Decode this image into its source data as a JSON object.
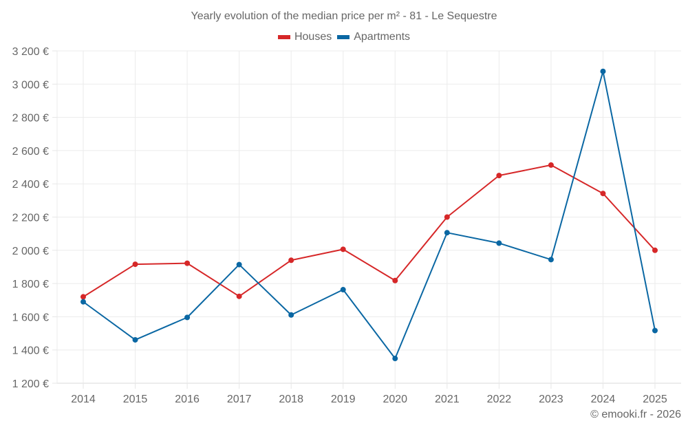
{
  "chart_data": {
    "type": "line",
    "title": "Yearly evolution of the median price per m² - 81 - Le Sequestre",
    "xlabel": "",
    "ylabel": "",
    "x": [
      "2014",
      "2015",
      "2016",
      "2017",
      "2018",
      "2019",
      "2020",
      "2021",
      "2022",
      "2023",
      "2024",
      "2025"
    ],
    "series": [
      {
        "name": "Houses",
        "color": "#d62728",
        "values": [
          1720,
          1916,
          1922,
          1723,
          1940,
          2006,
          1818,
          2200,
          2450,
          2513,
          2342,
          2000
        ]
      },
      {
        "name": "Apartments",
        "color": "#0a67a3",
        "values": [
          1690,
          1461,
          1596,
          1914,
          1611,
          1763,
          1349,
          2106,
          2043,
          1944,
          3077,
          1517
        ]
      }
    ],
    "ylim": [
      1200,
      3200
    ],
    "yticks": [
      1200,
      1400,
      1600,
      1800,
      2000,
      2200,
      2400,
      2600,
      2800,
      3000,
      3200
    ],
    "ytick_labels": [
      "1 200 €",
      "1 400 €",
      "1 600 €",
      "1 800 €",
      "2 000 €",
      "2 200 €",
      "2 400 €",
      "2 600 €",
      "2 800 €",
      "3 000 €",
      "3 200 €"
    ],
    "grid": true,
    "legend_position": "top-center"
  },
  "credit": "© emooki.fr - 2026"
}
